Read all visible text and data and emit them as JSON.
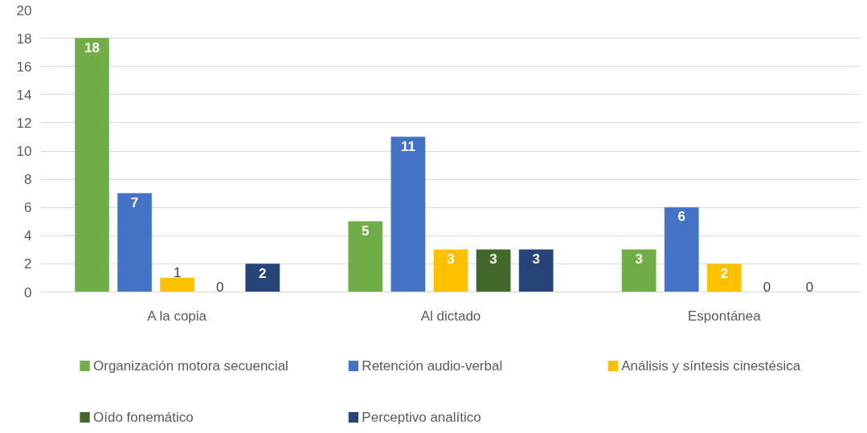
{
  "chart_data": {
    "type": "bar",
    "categories": [
      "A la copia",
      "Al dictado",
      "Espontánea"
    ],
    "series": [
      {
        "name": "Organización motora secuencial",
        "color": "#70ad47",
        "values": [
          18,
          5,
          3
        ]
      },
      {
        "name": "Retención audio-verbal",
        "color": "#4472c4",
        "values": [
          7,
          11,
          6
        ]
      },
      {
        "name": "Análisis y síntesis cinestésica",
        "color": "#ffc000",
        "values": [
          1,
          3,
          2
        ]
      },
      {
        "name": "Oído fonemático",
        "color": "#43682b",
        "values": [
          0,
          3,
          0
        ]
      },
      {
        "name": "Perceptivo analítico",
        "color": "#264478",
        "values": [
          2,
          3,
          0
        ]
      }
    ],
    "ylim": [
      0,
      20
    ],
    "yticks": [
      0,
      2,
      4,
      6,
      8,
      10,
      12,
      14,
      16,
      18,
      20
    ],
    "grid": "y",
    "legend": "bottom",
    "data_labels": true
  }
}
